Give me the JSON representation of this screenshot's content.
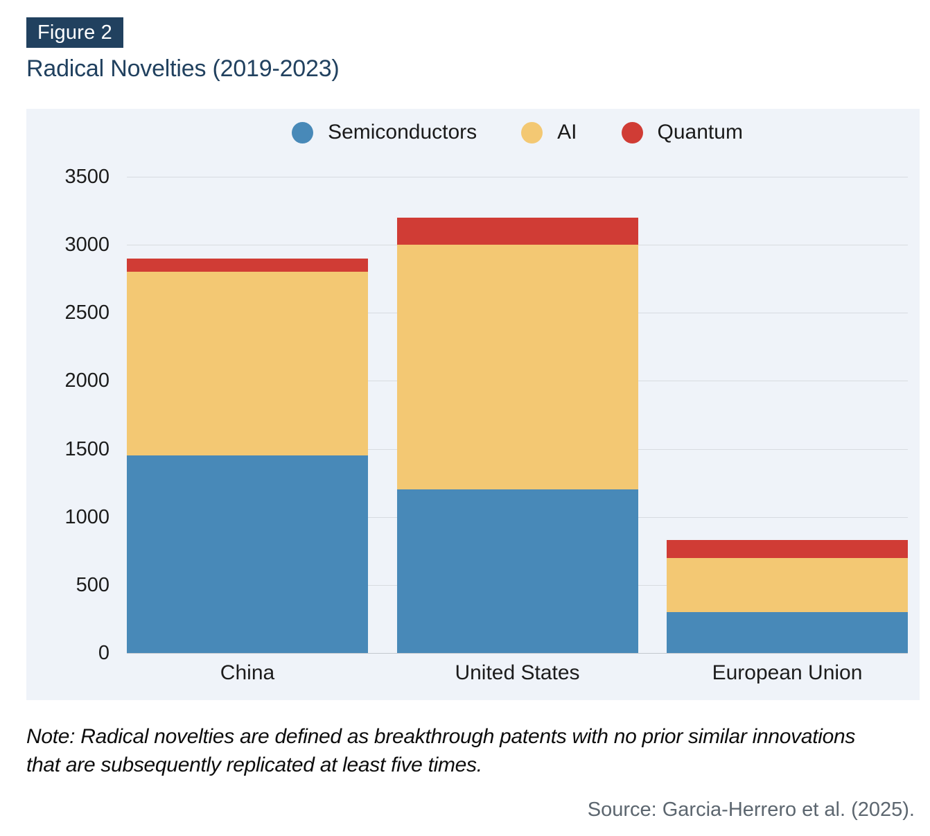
{
  "header": {
    "figure_label": "Figure 2",
    "title": "Radical Novelties (2019-2023)"
  },
  "footer": {
    "note": "Note: Radical novelties are defined as breakthrough patents with no prior similar innovations that are subsequently replicated at least five times.",
    "source": "Source: Garcia-Herrero et al. (2025)."
  },
  "colors": {
    "accent_navy": "#21415f",
    "panel_background": "#eff3f9",
    "gridline": "#d7dbe0",
    "axis_text": "#1c1c1c",
    "note_text": "#0d0d0d",
    "source_text": "#5c666f",
    "semiconductors": "#4889b8",
    "ai": "#f3c873",
    "quantum": "#d03c35"
  },
  "chart_data": {
    "type": "bar",
    "stacked": true,
    "title": "Radical Novelties (2019-2023)",
    "categories": [
      "China",
      "United States",
      "European Union"
    ],
    "series": [
      {
        "name": "Semiconductors",
        "color": "#4889b8",
        "values": [
          1450,
          1200,
          300
        ]
      },
      {
        "name": "AI",
        "color": "#f3c873",
        "values": [
          1350,
          1800,
          400
        ]
      },
      {
        "name": "Quantum",
        "color": "#d03c35",
        "values": [
          100,
          200,
          130
        ]
      }
    ],
    "totals": [
      2900,
      3200,
      830
    ],
    "xlabel": "",
    "ylabel": "",
    "ylim": [
      0,
      3500
    ],
    "ytick_step": 500,
    "yticks": [
      0,
      500,
      1000,
      1500,
      2000,
      2500,
      3000,
      3500
    ],
    "legend_position": "top",
    "grid": "horizontal"
  }
}
